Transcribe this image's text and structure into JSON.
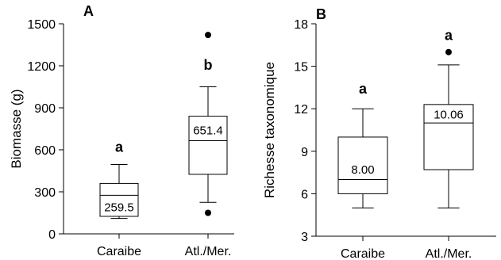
{
  "chart_data": [
    {
      "type": "box",
      "panel_label": "A",
      "ylabel": "Biomasse (g)",
      "xlabel": "",
      "ylim": [
        0,
        1500
      ],
      "yticks": [
        "0",
        "300",
        "600",
        "900",
        "1200",
        "1500"
      ],
      "ytick_values": [
        0,
        300,
        600,
        900,
        1200,
        1500
      ],
      "categories": [
        "Caraibe",
        "Atl./Mer."
      ],
      "boxes": [
        {
          "category": "Caraibe",
          "whisker_low": 110,
          "q1": 125,
          "median": 275,
          "q3": 360,
          "whisker_high": 495,
          "outliers": [],
          "mean_label": "259.5",
          "mean_label_y": 190,
          "letter": "a",
          "letter_y": 620
        },
        {
          "category": "Atl./Mer.",
          "whisker_low": 225,
          "q1": 425,
          "median": 665,
          "q3": 840,
          "whisker_high": 1050,
          "outliers": [
            150,
            1420
          ],
          "mean_label": "651.4",
          "mean_label_y": 740,
          "letter": "b",
          "letter_y": 1205
        }
      ]
    },
    {
      "type": "box",
      "panel_label": "B",
      "ylabel": "Richesse taxonomique",
      "xlabel": "",
      "ylim": [
        3,
        18
      ],
      "yticks": [
        "3",
        "6",
        "9",
        "12",
        "15",
        "18"
      ],
      "ytick_values": [
        3,
        6,
        9,
        12,
        15,
        18
      ],
      "categories": [
        "Caraibe",
        "Atl./Mer."
      ],
      "boxes": [
        {
          "category": "Caraibe",
          "whisker_low": 5,
          "q1": 6,
          "median": 7,
          "q3": 10,
          "whisker_high": 12,
          "outliers": [],
          "mean_label": "8.00",
          "mean_label_y": 7.7,
          "letter": "a",
          "letter_y": 13.4
        },
        {
          "category": "Atl./Mer.",
          "whisker_low": 5,
          "q1": 7.7,
          "median": 11,
          "q3": 12.3,
          "whisker_high": 15.1,
          "outliers": [
            16
          ],
          "mean_label": "10.06",
          "mean_label_y": 11.6,
          "letter": "a",
          "letter_y": 17.2
        }
      ]
    }
  ]
}
